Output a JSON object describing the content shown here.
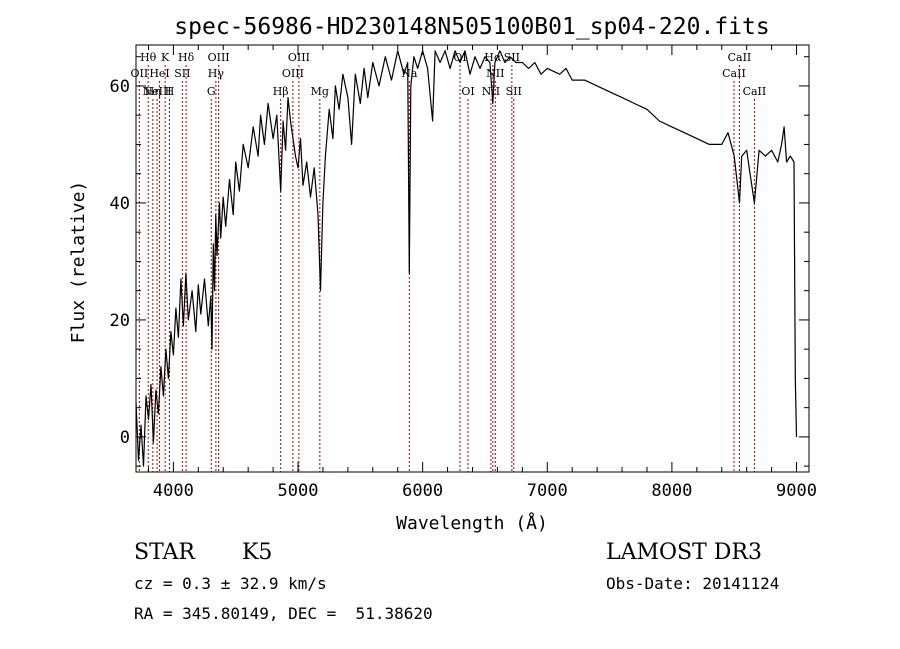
{
  "chart_data": {
    "type": "line",
    "title": "spec-56986-HD230148N505100B01_sp04-220.fits",
    "xlabel": "Wavelength (Å)",
    "ylabel": "Flux (relative)",
    "xlim": [
      3700,
      9100
    ],
    "ylim": [
      -6,
      67
    ],
    "xticks": [
      4000,
      5000,
      6000,
      7000,
      8000,
      9000
    ],
    "yticks": [
      0,
      20,
      40,
      60
    ],
    "x_minor_step": 200,
    "y_minor_step": 5,
    "series": [
      {
        "name": "flux",
        "points": [
          [
            3700,
            6
          ],
          [
            3720,
            -4
          ],
          [
            3740,
            2
          ],
          [
            3760,
            -5
          ],
          [
            3780,
            7
          ],
          [
            3800,
            3
          ],
          [
            3820,
            9
          ],
          [
            3840,
            -1
          ],
          [
            3860,
            8
          ],
          [
            3880,
            4
          ],
          [
            3900,
            12
          ],
          [
            3920,
            7
          ],
          [
            3940,
            15
          ],
          [
            3960,
            10
          ],
          [
            3980,
            18
          ],
          [
            4000,
            14
          ],
          [
            4020,
            22
          ],
          [
            4040,
            17
          ],
          [
            4060,
            27
          ],
          [
            4080,
            19
          ],
          [
            4100,
            28
          ],
          [
            4120,
            20
          ],
          [
            4150,
            25
          ],
          [
            4180,
            18
          ],
          [
            4200,
            26
          ],
          [
            4220,
            21
          ],
          [
            4250,
            27
          ],
          [
            4280,
            19
          ],
          [
            4300,
            24
          ],
          [
            4310,
            15
          ],
          [
            4320,
            33
          ],
          [
            4330,
            25
          ],
          [
            4340,
            38
          ],
          [
            4350,
            31
          ],
          [
            4370,
            40
          ],
          [
            4380,
            34
          ],
          [
            4400,
            41
          ],
          [
            4420,
            36
          ],
          [
            4450,
            44
          ],
          [
            4480,
            38
          ],
          [
            4500,
            47
          ],
          [
            4530,
            42
          ],
          [
            4560,
            50
          ],
          [
            4600,
            46
          ],
          [
            4640,
            53
          ],
          [
            4680,
            48
          ],
          [
            4700,
            55
          ],
          [
            4730,
            50
          ],
          [
            4760,
            57
          ],
          [
            4800,
            51
          ],
          [
            4830,
            55
          ],
          [
            4861,
            42
          ],
          [
            4880,
            54
          ],
          [
            4900,
            49
          ],
          [
            4920,
            58
          ],
          [
            4940,
            54
          ],
          [
            4960,
            51
          ],
          [
            4980,
            48
          ],
          [
            5000,
            46
          ],
          [
            5020,
            51
          ],
          [
            5040,
            43
          ],
          [
            5070,
            47
          ],
          [
            5100,
            41
          ],
          [
            5130,
            46
          ],
          [
            5160,
            38
          ],
          [
            5180,
            25
          ],
          [
            5200,
            40
          ],
          [
            5220,
            48
          ],
          [
            5250,
            56
          ],
          [
            5280,
            51
          ],
          [
            5300,
            60
          ],
          [
            5330,
            56
          ],
          [
            5360,
            62
          ],
          [
            5400,
            58
          ],
          [
            5430,
            50
          ],
          [
            5460,
            62
          ],
          [
            5500,
            57
          ],
          [
            5530,
            63
          ],
          [
            5560,
            58
          ],
          [
            5600,
            64
          ],
          [
            5650,
            60
          ],
          [
            5700,
            65
          ],
          [
            5750,
            61
          ],
          [
            5800,
            66
          ],
          [
            5850,
            62
          ],
          [
            5880,
            64
          ],
          [
            5893,
            28
          ],
          [
            5905,
            60
          ],
          [
            5930,
            65
          ],
          [
            5960,
            63
          ],
          [
            6000,
            66
          ],
          [
            6040,
            63
          ],
          [
            6080,
            54
          ],
          [
            6100,
            66
          ],
          [
            6140,
            64
          ],
          [
            6180,
            66
          ],
          [
            6220,
            63
          ],
          [
            6260,
            66
          ],
          [
            6300,
            64
          ],
          [
            6340,
            66
          ],
          [
            6380,
            62
          ],
          [
            6420,
            65
          ],
          [
            6460,
            63
          ],
          [
            6500,
            65
          ],
          [
            6540,
            64
          ],
          [
            6563,
            57
          ],
          [
            6580,
            64
          ],
          [
            6620,
            66
          ],
          [
            6660,
            64
          ],
          [
            6700,
            65
          ],
          [
            6750,
            64
          ],
          [
            6800,
            64
          ],
          [
            6850,
            63
          ],
          [
            6900,
            64
          ],
          [
            6950,
            62
          ],
          [
            7000,
            63
          ],
          [
            7100,
            62
          ],
          [
            7150,
            63
          ],
          [
            7200,
            61
          ],
          [
            7300,
            61
          ],
          [
            7400,
            60
          ],
          [
            7500,
            59
          ],
          [
            7600,
            58
          ],
          [
            7700,
            57
          ],
          [
            7800,
            56
          ],
          [
            7900,
            54
          ],
          [
            8000,
            53
          ],
          [
            8100,
            52
          ],
          [
            8200,
            51
          ],
          [
            8300,
            50
          ],
          [
            8400,
            50
          ],
          [
            8450,
            52
          ],
          [
            8500,
            48
          ],
          [
            8542,
            40
          ],
          [
            8560,
            48
          ],
          [
            8600,
            49
          ],
          [
            8620,
            46
          ],
          [
            8662,
            40
          ],
          [
            8700,
            49
          ],
          [
            8750,
            48
          ],
          [
            8800,
            49
          ],
          [
            8850,
            47
          ],
          [
            8880,
            50
          ],
          [
            8900,
            53
          ],
          [
            8920,
            47
          ],
          [
            8950,
            48
          ],
          [
            8980,
            47
          ],
          [
            8990,
            10
          ],
          [
            9000,
            0
          ]
        ]
      }
    ],
    "lines": [
      {
        "x": 3727,
        "label": "OII",
        "row": 2
      },
      {
        "x": 3798,
        "label": "Hθ",
        "row": 1
      },
      {
        "x": 3835,
        "label": "Hη",
        "row": 3
      },
      {
        "x": 3869,
        "label": "NeIII",
        "row": 3
      },
      {
        "x": 3889,
        "label": "HeI",
        "row": 2
      },
      {
        "x": 3934,
        "label": "K",
        "row": 1
      },
      {
        "x": 3969,
        "label": "H",
        "row": 3
      },
      {
        "x": 4072,
        "label": "SII",
        "row": 2
      },
      {
        "x": 4102,
        "label": "Hδ",
        "row": 1
      },
      {
        "x": 4304,
        "label": "G",
        "row": 3
      },
      {
        "x": 4341,
        "label": "Hγ",
        "row": 2
      },
      {
        "x": 4363,
        "label": "OIII",
        "row": 1
      },
      {
        "x": 4861,
        "label": "Hβ",
        "row": 3
      },
      {
        "x": 4959,
        "label": "OIII",
        "row": 2
      },
      {
        "x": 5007,
        "label": "OIII",
        "row": 1
      },
      {
        "x": 5175,
        "label": "Mg",
        "row": 3
      },
      {
        "x": 5893,
        "label": "Na",
        "row": 2
      },
      {
        "x": 6300,
        "label": "OI",
        "row": 1
      },
      {
        "x": 6364,
        "label": "OI",
        "row": 3
      },
      {
        "x": 6548,
        "label": "NII",
        "row": 3
      },
      {
        "x": 6563,
        "label": "Hα",
        "row": 1
      },
      {
        "x": 6583,
        "label": "NII",
        "row": 2
      },
      {
        "x": 6716,
        "label": "SII",
        "row": 1
      },
      {
        "x": 6731,
        "label": "SII",
        "row": 3
      },
      {
        "x": 8498,
        "label": "CaII",
        "row": 2
      },
      {
        "x": 8542,
        "label": "CaII",
        "row": 1
      },
      {
        "x": 8662,
        "label": "CaII",
        "row": 3
      }
    ]
  },
  "info": {
    "object_class": "STAR",
    "subclass": "K5",
    "survey": "LAMOST DR3",
    "redshift": "cz = 0.3 ± 32.9 km/s",
    "obs_date": "Obs-Date: 20141124",
    "coords": "RA = 345.80149, DEC =  51.38620"
  },
  "colors": {
    "line": "#000000",
    "marker": "#b00000",
    "background": "#ffffff"
  }
}
